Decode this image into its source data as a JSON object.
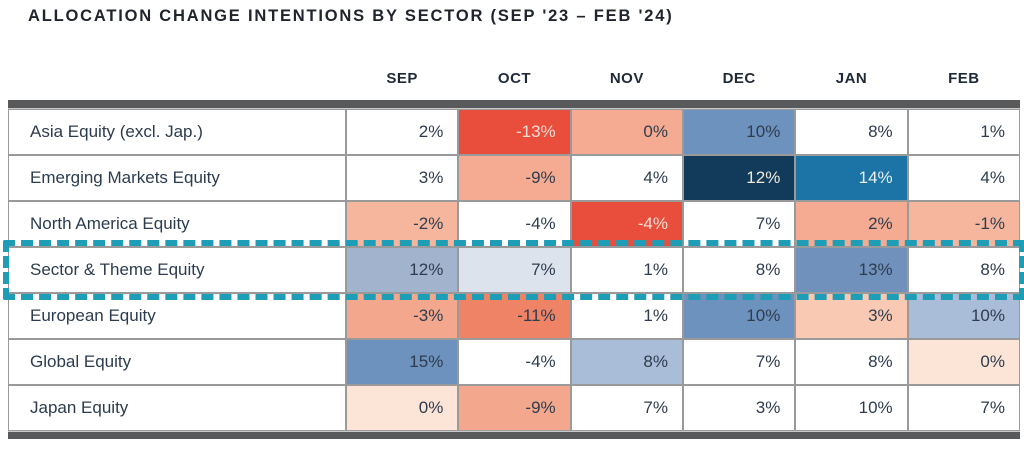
{
  "title": "ALLOCATION CHANGE INTENTIONS BY SECTOR (SEP '23 – FEB '24)",
  "columns": [
    "SEP",
    "OCT",
    "NOV",
    "DEC",
    "JAN",
    "FEB"
  ],
  "colors": {
    "text_dark": "#2e3c4e",
    "title_text": "#20242c",
    "grid_line": "#9a9a9a",
    "frame_bar": "#58595b",
    "highlight_teal": "#1e9db6",
    "negative_strong": "#e94d3b",
    "positive_strong_navy": "#123a5a",
    "positive_strong_blue": "#1b73a6"
  },
  "highlight": {
    "row_label": "Sector & Theme Equity",
    "color": "#1e9db6",
    "style": "dashed"
  },
  "rows": [
    {
      "label": "Asia Equity (excl. Jap.)",
      "highlighted": false,
      "cells": [
        {
          "text": "2%",
          "bg": "#ffffff",
          "fg": "#2e3c4e"
        },
        {
          "text": "-13%",
          "bg": "#e94d3b",
          "fg": "#fbded6"
        },
        {
          "text": "0%",
          "bg": "#f5ab91",
          "fg": "#2e3c4e"
        },
        {
          "text": "10%",
          "bg": "#6d92bd",
          "fg": "#2e3c4e"
        },
        {
          "text": "8%",
          "bg": "#ffffff",
          "fg": "#2e3c4e"
        },
        {
          "text": "1%",
          "bg": "#ffffff",
          "fg": "#2e3c4e"
        }
      ]
    },
    {
      "label": "Emerging Markets Equity",
      "highlighted": false,
      "cells": [
        {
          "text": "3%",
          "bg": "#ffffff",
          "fg": "#2e3c4e"
        },
        {
          "text": "-9%",
          "bg": "#f5ab91",
          "fg": "#2e3c4e"
        },
        {
          "text": "4%",
          "bg": "#ffffff",
          "fg": "#2e3c4e"
        },
        {
          "text": "12%",
          "bg": "#123a5a",
          "fg": "#efe9da"
        },
        {
          "text": "14%",
          "bg": "#1b73a6",
          "fg": "#e8f0f5"
        },
        {
          "text": "4%",
          "bg": "#ffffff",
          "fg": "#2e3c4e"
        }
      ]
    },
    {
      "label": "North America Equity",
      "highlighted": false,
      "cells": [
        {
          "text": "-2%",
          "bg": "#f6b69e",
          "fg": "#2e3c4e"
        },
        {
          "text": "-4%",
          "bg": "#ffffff",
          "fg": "#2e3c4e"
        },
        {
          "text": "-4%",
          "bg": "#e94d3b",
          "fg": "#fbded6"
        },
        {
          "text": "7%",
          "bg": "#ffffff",
          "fg": "#2e3c4e"
        },
        {
          "text": "2%",
          "bg": "#f5ab91",
          "fg": "#2e3c4e"
        },
        {
          "text": "-1%",
          "bg": "#f6b69e",
          "fg": "#2e3c4e"
        }
      ]
    },
    {
      "label": "Sector & Theme Equity",
      "highlighted": true,
      "cells": [
        {
          "text": "12%",
          "bg": "#a2b3ce",
          "fg": "#2e3c4e"
        },
        {
          "text": "7%",
          "bg": "#dce3ed",
          "fg": "#2e3c4e"
        },
        {
          "text": "1%",
          "bg": "#ffffff",
          "fg": "#2e3c4e"
        },
        {
          "text": "8%",
          "bg": "#ffffff",
          "fg": "#2e3c4e"
        },
        {
          "text": "13%",
          "bg": "#7191bd",
          "fg": "#2e3c4e"
        },
        {
          "text": "8%",
          "bg": "#ffffff",
          "fg": "#2e3c4e"
        }
      ]
    },
    {
      "label": "European Equity",
      "highlighted": false,
      "cells": [
        {
          "text": "-3%",
          "bg": "#f3a78c",
          "fg": "#2e3c4e"
        },
        {
          "text": "-11%",
          "bg": "#ee8366",
          "fg": "#2e3c4e"
        },
        {
          "text": "1%",
          "bg": "#ffffff",
          "fg": "#2e3c4e"
        },
        {
          "text": "10%",
          "bg": "#6d92bd",
          "fg": "#2e3c4e"
        },
        {
          "text": "3%",
          "bg": "#f9c9b3",
          "fg": "#2e3c4e"
        },
        {
          "text": "10%",
          "bg": "#a9bcd8",
          "fg": "#2e3c4e"
        }
      ]
    },
    {
      "label": "Global Equity",
      "highlighted": false,
      "cells": [
        {
          "text": "15%",
          "bg": "#6d92bd",
          "fg": "#2e3c4e"
        },
        {
          "text": "-4%",
          "bg": "#ffffff",
          "fg": "#2e3c4e"
        },
        {
          "text": "8%",
          "bg": "#a9bcd8",
          "fg": "#2e3c4e"
        },
        {
          "text": "7%",
          "bg": "#ffffff",
          "fg": "#2e3c4e"
        },
        {
          "text": "8%",
          "bg": "#ffffff",
          "fg": "#2e3c4e"
        },
        {
          "text": "0%",
          "bg": "#fce4d7",
          "fg": "#2e3c4e"
        }
      ]
    },
    {
      "label": "Japan Equity",
      "highlighted": false,
      "cells": [
        {
          "text": "0%",
          "bg": "#fce4d7",
          "fg": "#2e3c4e"
        },
        {
          "text": "-9%",
          "bg": "#f3a78c",
          "fg": "#2e3c4e"
        },
        {
          "text": "7%",
          "bg": "#ffffff",
          "fg": "#2e3c4e"
        },
        {
          "text": "3%",
          "bg": "#ffffff",
          "fg": "#2e3c4e"
        },
        {
          "text": "10%",
          "bg": "#ffffff",
          "fg": "#2e3c4e"
        },
        {
          "text": "7%",
          "bg": "#ffffff",
          "fg": "#2e3c4e"
        }
      ]
    }
  ],
  "chart_data": {
    "type": "heatmap",
    "title": "ALLOCATION CHANGE INTENTIONS BY SECTOR (SEP '23 – FEB '24)",
    "x": [
      "SEP",
      "OCT",
      "NOV",
      "DEC",
      "JAN",
      "FEB"
    ],
    "y": [
      "Asia Equity (excl. Jap.)",
      "Emerging Markets Equity",
      "North America Equity",
      "Sector & Theme Equity",
      "European Equity",
      "Global Equity",
      "Japan Equity"
    ],
    "values_percent": [
      [
        2,
        -13,
        0,
        10,
        8,
        1
      ],
      [
        3,
        -9,
        4,
        12,
        14,
        4
      ],
      [
        -2,
        -4,
        -4,
        7,
        2,
        -1
      ],
      [
        12,
        7,
        1,
        8,
        13,
        8
      ],
      [
        -3,
        -11,
        1,
        10,
        3,
        10
      ],
      [
        15,
        -4,
        8,
        7,
        8,
        0
      ],
      [
        0,
        -9,
        7,
        3,
        10,
        7
      ]
    ],
    "annotations": [
      "Sector & Theme Equity row outlined with teal dashed border"
    ],
    "colorscale_hint": "red = negative intent, blue = positive intent, white = neutral",
    "legend": "none",
    "grid": true
  }
}
